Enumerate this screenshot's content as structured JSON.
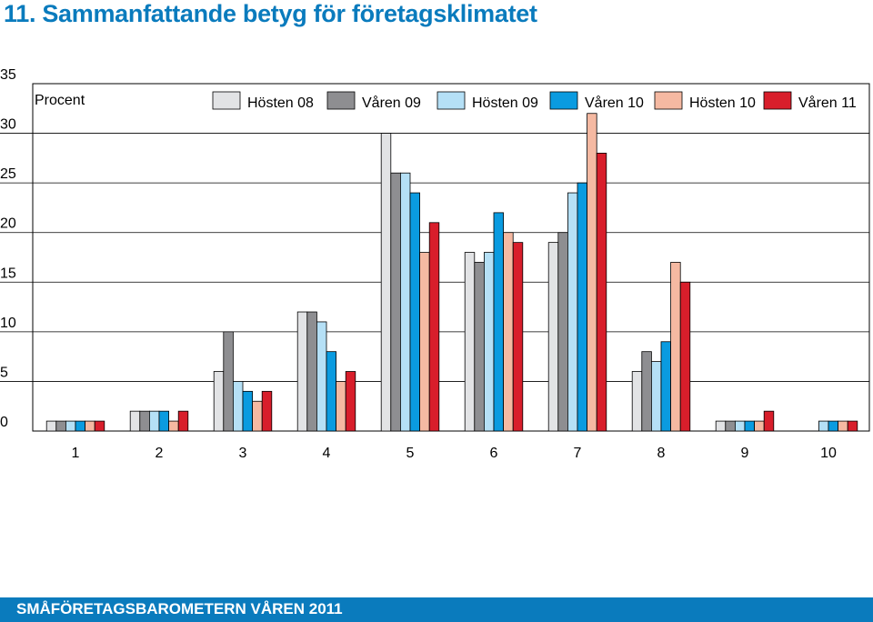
{
  "title": "11. Sammanfattande betyg för företagsklimatet",
  "footer": "SMÅFÖRETAGSBAROMETERN VÅREN 2011",
  "chart_data": {
    "type": "bar",
    "title": "11. Sammanfattande betyg för företagsklimatet",
    "ylabel": "Procent",
    "xlabel": "",
    "categories": [
      "1",
      "2",
      "3",
      "4",
      "5",
      "6",
      "7",
      "8",
      "9",
      "10"
    ],
    "y_ticks": [
      "0",
      "5",
      "10",
      "15",
      "20",
      "25",
      "30",
      "35"
    ],
    "ylim": [
      0,
      35
    ],
    "grid": "horizontal",
    "legend_position": "top",
    "series": [
      {
        "name": "Hösten 08",
        "color": "#e2e3e5",
        "values": [
          1,
          2,
          6,
          12,
          30,
          18,
          19,
          6,
          1,
          0
        ]
      },
      {
        "name": "Våren 09",
        "color": "#8e8e91",
        "values": [
          1,
          2,
          10,
          12,
          26,
          17,
          20,
          8,
          1,
          0
        ]
      },
      {
        "name": "Hösten 09",
        "color": "#b5e0f6",
        "values": [
          1,
          2,
          5,
          11,
          26,
          18,
          24,
          7,
          1,
          1
        ]
      },
      {
        "name": "Våren 10",
        "color": "#0a9be0",
        "values": [
          1,
          2,
          4,
          8,
          24,
          22,
          25,
          9,
          1,
          1
        ]
      },
      {
        "name": "Hösten 10",
        "color": "#f5b9a2",
        "values": [
          1,
          1,
          3,
          5,
          18,
          20,
          32,
          17,
          1,
          1
        ]
      },
      {
        "name": "Våren 11",
        "color": "#d81e2b",
        "values": [
          1,
          2,
          4,
          6,
          21,
          19,
          28,
          15,
          2,
          1
        ]
      }
    ]
  }
}
